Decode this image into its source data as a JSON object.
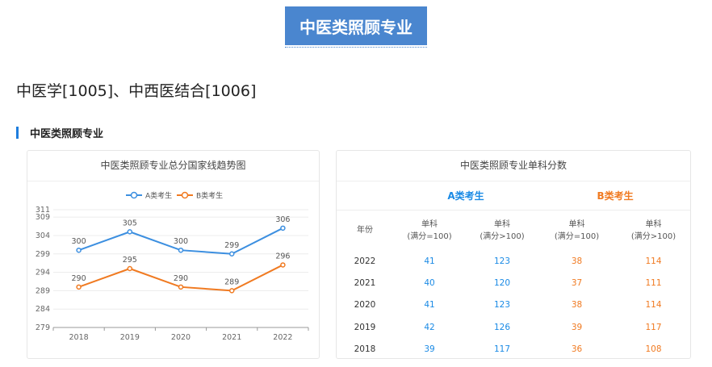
{
  "banner": {
    "title": "中医类照顾专业"
  },
  "subject_line": "中医学[1005]、中西医结合[1006]",
  "section_heading": "中医类照顾专业",
  "line_chart": {
    "title": "中医类照顾专业总分国家线趋势图",
    "legend": [
      {
        "name": "A类考生",
        "color": "#3c8fe0"
      },
      {
        "name": "B类考生",
        "color": "#f07a21"
      }
    ]
  },
  "chart_data": {
    "type": "line",
    "title": "中医类照顾专业总分国家线趋势图",
    "categories": [
      "2018",
      "2019",
      "2020",
      "2021",
      "2022"
    ],
    "series": [
      {
        "name": "A类考生",
        "values": [
          300,
          305,
          300,
          299,
          306
        ],
        "color": "#3c8fe0"
      },
      {
        "name": "B类考生",
        "values": [
          290,
          295,
          290,
          289,
          296
        ],
        "color": "#f07a21"
      }
    ],
    "y_ticks": [
      279,
      284,
      289,
      294,
      299,
      304,
      309,
      311
    ],
    "ylim": [
      279,
      311
    ],
    "grid": true,
    "legend_position": "top-center"
  },
  "score_table": {
    "title": "中医类照顾专业单科分数",
    "groups": [
      "A类考生",
      "B类考生"
    ],
    "headers": [
      {
        "line1": "年份",
        "line2": ""
      },
      {
        "line1": "单科",
        "line2": "(满分=100)"
      },
      {
        "line1": "单科",
        "line2": "(满分>100)"
      },
      {
        "line1": "单科",
        "line2": "(满分=100)"
      },
      {
        "line1": "单科",
        "line2": "(满分>100)"
      }
    ],
    "rows": [
      [
        "2022",
        "41",
        "123",
        "38",
        "114"
      ],
      [
        "2021",
        "40",
        "120",
        "37",
        "111"
      ],
      [
        "2020",
        "41",
        "123",
        "38",
        "114"
      ],
      [
        "2019",
        "42",
        "126",
        "39",
        "117"
      ],
      [
        "2018",
        "39",
        "117",
        "36",
        "108"
      ]
    ]
  }
}
